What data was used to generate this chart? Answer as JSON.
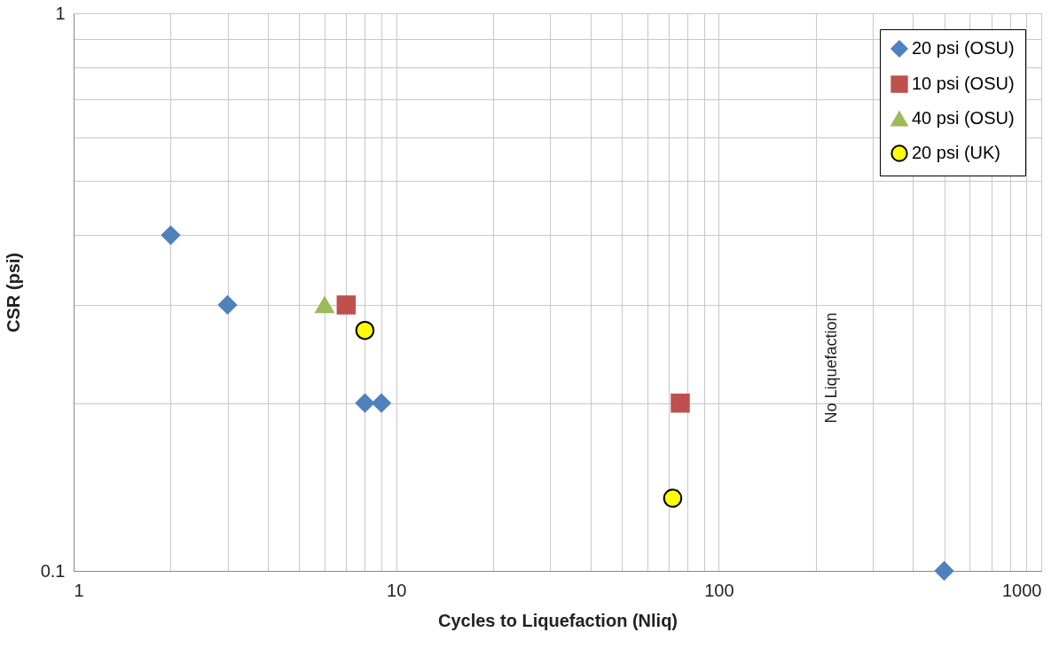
{
  "chart_data": {
    "type": "scatter",
    "xlabel": "Cycles to Liquefaction (Nliq)",
    "ylabel": "CSR (psi)",
    "log": "xy",
    "grid": true,
    "legend": "top right",
    "xlim": [
      1,
      1000
    ],
    "ylim": [
      0.1,
      1
    ],
    "xticks": [
      1,
      {
        "value": 2,
        "label": null
      },
      {
        "value": 3,
        "label": null
      },
      {
        "value": 4,
        "label": null
      },
      {
        "value": 5,
        "label": null
      },
      {
        "value": 6,
        "label": null
      },
      {
        "value": 7,
        "label": null
      },
      {
        "value": 8,
        "label": null
      },
      {
        "value": 9,
        "label": null
      },
      10,
      {
        "value": 20,
        "label": null
      },
      {
        "value": 30,
        "label": null
      },
      {
        "value": 40,
        "label": null
      },
      {
        "value": 50,
        "label": null
      },
      {
        "value": 60,
        "label": null
      },
      {
        "value": 70,
        "label": null
      },
      {
        "value": 80,
        "label": null
      },
      {
        "value": 90,
        "label": null
      },
      100,
      {
        "value": 200,
        "label": null
      },
      {
        "value": 300,
        "label": null
      },
      {
        "value": 400,
        "label": null
      },
      {
        "value": 500,
        "label": null
      },
      {
        "value": 600,
        "label": null
      },
      {
        "value": 700,
        "label": null
      },
      {
        "value": 800,
        "label": null
      },
      {
        "value": 900,
        "label": null
      },
      1000
    ],
    "yticks": [
      0.1,
      {
        "value": 0.2,
        "label": null
      },
      {
        "value": 0.3,
        "label": null
      },
      {
        "value": 0.4,
        "label": null
      },
      {
        "value": 0.5,
        "label": null
      },
      {
        "value": 0.6,
        "label": null
      },
      {
        "value": 0.7,
        "label": null
      },
      {
        "value": 0.8,
        "label": null
      },
      {
        "value": 0.9,
        "label": null
      },
      1
    ],
    "series": [
      {
        "name": "20 psi (OSU)",
        "color": "#4f81bd",
        "marker": "diamond",
        "x": [
          2,
          3,
          8,
          9,
          500
        ],
        "values": [
          0.4,
          0.3,
          0.2,
          0.2,
          0.1
        ]
      },
      {
        "name": "10 psi (OSU)",
        "color": "#c0504d",
        "marker": "square",
        "x": [
          7,
          76
        ],
        "values": [
          0.3,
          0.2
        ]
      },
      {
        "name": "40 psi (OSU)",
        "color": "#9bbb59",
        "marker": "triangle",
        "x": [
          6
        ],
        "values": [
          0.3
        ]
      },
      {
        "name": "20 psi (UK)",
        "color": "#ffff00",
        "marker": "circle",
        "x": [
          8,
          72
        ],
        "values": [
          0.27,
          0.135
        ]
      }
    ],
    "annotations": [
      "No Liquefaction"
    ]
  }
}
